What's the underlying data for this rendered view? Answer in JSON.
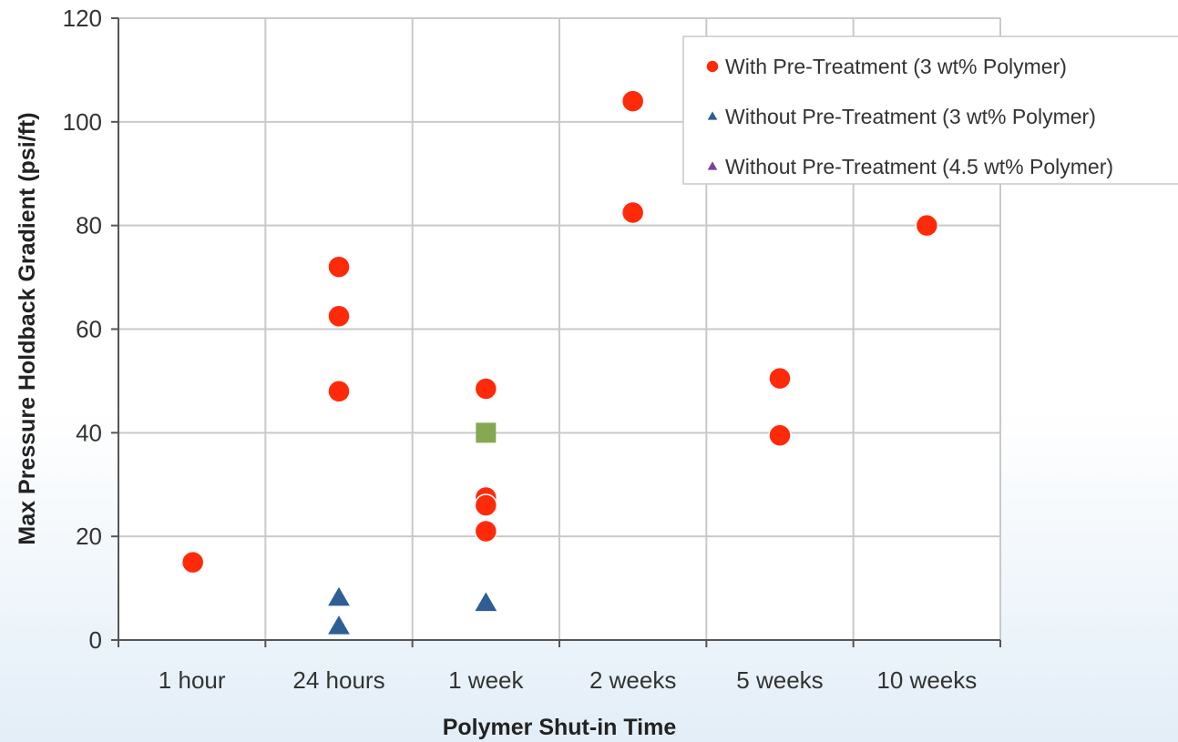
{
  "chart_data": {
    "type": "scatter",
    "xlabel": "Polymer Shut-in Time",
    "ylabel": "Max Pressure Holdback Gradient (psi/ft)",
    "categories": [
      "1 hour",
      "24 hours",
      "1 week",
      "2 weeks",
      "5 weeks",
      "10 weeks"
    ],
    "ylim": [
      0,
      120
    ],
    "yticks": [
      0,
      20,
      40,
      60,
      80,
      100,
      120
    ],
    "grid": true,
    "legend_position": "top-right",
    "series": [
      {
        "name": "With Pre-Treatment (3 wt% Polymer)",
        "marker": "circle",
        "color": "#ff2a0a",
        "points": [
          {
            "category": "1 hour",
            "value": 15
          },
          {
            "category": "24 hours",
            "value": 72
          },
          {
            "category": "24 hours",
            "value": 62.5
          },
          {
            "category": "24 hours",
            "value": 48
          },
          {
            "category": "1 week",
            "value": 48.5
          },
          {
            "category": "1 week",
            "value": 27.5
          },
          {
            "category": "1 week",
            "value": 26
          },
          {
            "category": "1 week",
            "value": 21
          },
          {
            "category": "2 weeks",
            "value": 104
          },
          {
            "category": "2 weeks",
            "value": 82.5
          },
          {
            "category": "5 weeks",
            "value": 50.5
          },
          {
            "category": "5 weeks",
            "value": 39.5
          },
          {
            "category": "10 weeks",
            "value": 80
          }
        ]
      },
      {
        "name": "Without Pre-Treatment (3 wt% Polymer)",
        "marker": "triangle",
        "color": "#2e5f94",
        "points": [
          {
            "category": "24 hours",
            "value": 8
          },
          {
            "category": "24 hours",
            "value": 2.5
          },
          {
            "category": "1 week",
            "value": 7
          }
        ]
      },
      {
        "name": "Without Pre-Treatment (4.5 wt% Polymer)",
        "marker": "triangle",
        "color": "#7b3fa0",
        "points": []
      },
      {
        "name": "",
        "marker": "square",
        "color": "#86a852",
        "legend": false,
        "points": [
          {
            "category": "1 week",
            "value": 40
          }
        ]
      }
    ]
  }
}
